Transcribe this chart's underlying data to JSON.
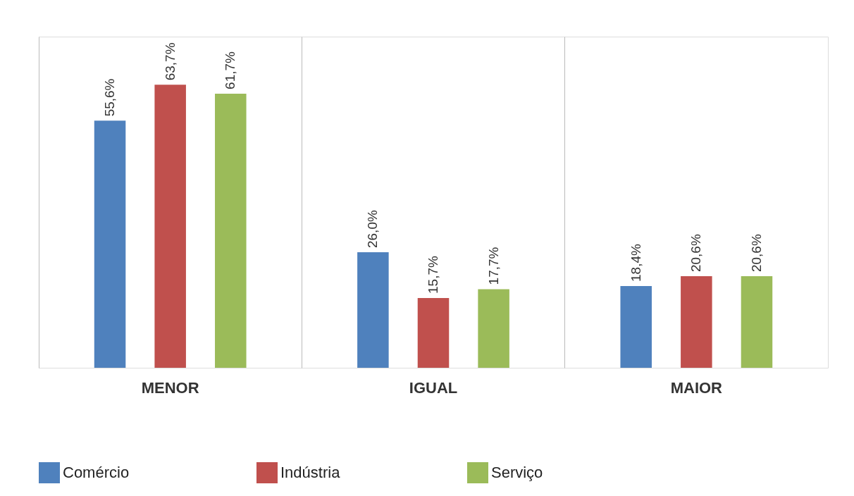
{
  "chart_data": {
    "type": "bar",
    "categories": [
      "MENOR",
      "IGUAL",
      "MAIOR"
    ],
    "series": [
      {
        "name": "Comércio",
        "color": "#4f81bd",
        "values": [
          55.6,
          26.0,
          18.4
        ],
        "value_labels": [
          "55,6%",
          "26,0%",
          "18,4%"
        ]
      },
      {
        "name": "Indústria",
        "color": "#c0504d",
        "values": [
          63.7,
          15.7,
          20.6
        ],
        "value_labels": [
          "63,7%",
          "15,7%",
          "20,6%"
        ]
      },
      {
        "name": "Serviço",
        "color": "#9bbb59",
        "values": [
          61.7,
          17.7,
          20.6
        ],
        "value_labels": [
          "61,7%",
          "17,7%",
          "20,6%"
        ]
      }
    ],
    "grid": "x",
    "legend": "bottom"
  }
}
